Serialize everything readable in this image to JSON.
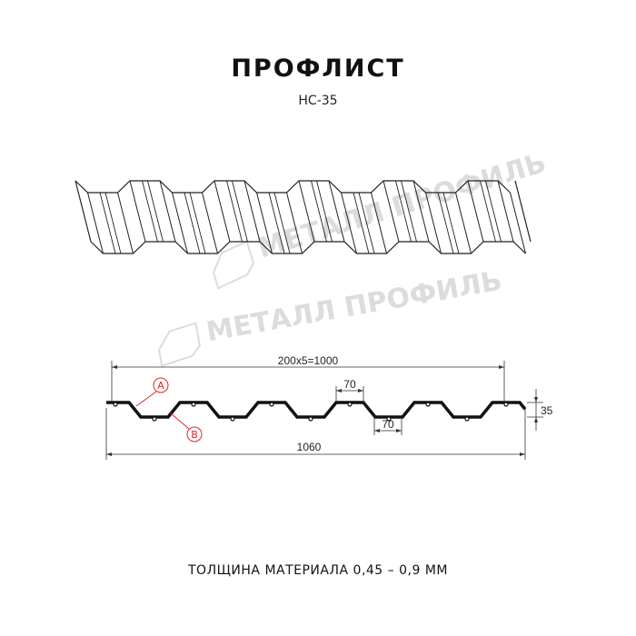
{
  "title": "ПРОФЛИСТ",
  "subtitle": "НС-35",
  "watermark": "МЕТАЛЛ ПРОФИЛЬ",
  "dimensions": {
    "pitch_total": "200x5=1000",
    "top_width": "70",
    "bottom_width": "70",
    "height": "35",
    "total_width": "1060"
  },
  "callouts": {
    "a": "A",
    "b": "B",
    "color": "#e0252b"
  },
  "thickness": "ТОЛЩИНА МАТЕРИАЛА 0,45 – 0,9 ММ"
}
